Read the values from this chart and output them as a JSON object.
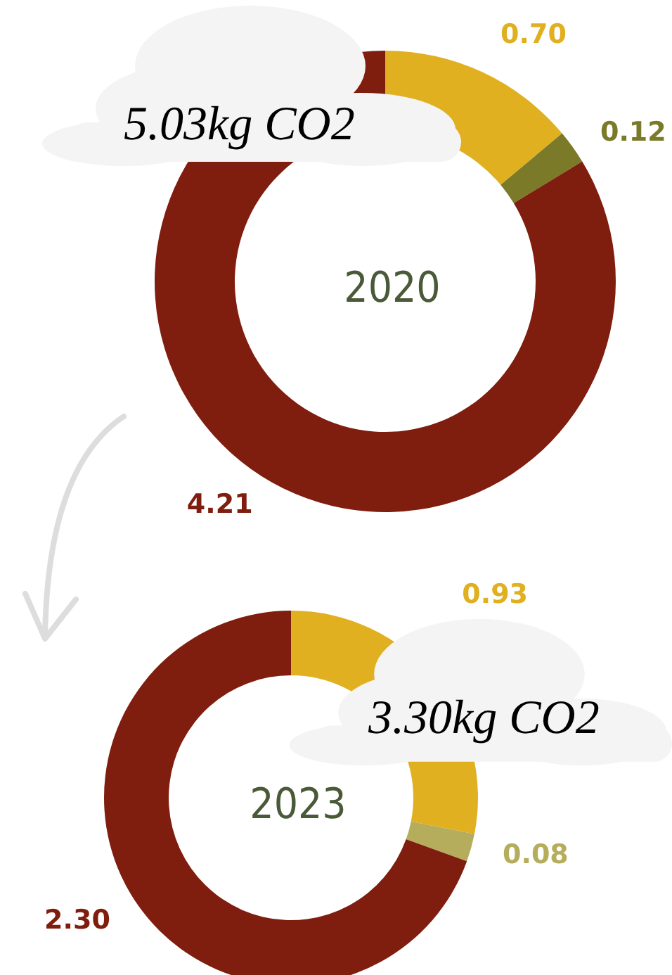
{
  "chart_data": [
    {
      "type": "donut",
      "title": "2020",
      "categories": [
        null,
        null,
        null
      ],
      "values": [
        0.7,
        0.12,
        4.21
      ],
      "value_labels": [
        "0.70",
        "0.12",
        "4.21"
      ],
      "colors": [
        "#e0b020",
        "#7a7a28",
        "#7f1d0e"
      ],
      "annotations": [
        "5.03kg CO2"
      ]
    },
    {
      "type": "donut",
      "title": "2023",
      "categories": [
        null,
        null,
        null
      ],
      "values": [
        0.93,
        0.08,
        2.3
      ],
      "value_labels": [
        "0.93",
        "0.08",
        "2.30"
      ],
      "colors": [
        "#e0b020",
        "#b5ad5c",
        "#7f1d0e"
      ],
      "annotations": [
        "3.30kg CO2"
      ]
    }
  ]
}
